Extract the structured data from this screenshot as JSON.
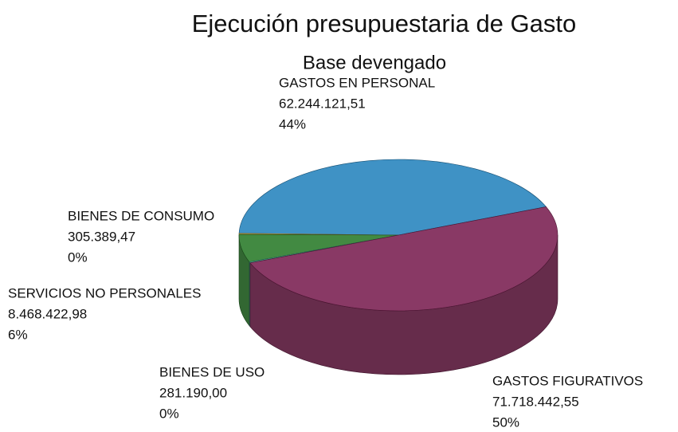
{
  "chart_data": {
    "type": "pie3d",
    "title": "Ejecución presupuestaria de Gasto",
    "subtitle": "Base devengado",
    "categories": [
      "GASTOS EN PERSONAL",
      "BIENES DE CONSUMO",
      "SERVICIOS NO PERSONALES",
      "BIENES DE USO",
      "GASTOS FIGURATIVOS"
    ],
    "values": [
      62244121.51,
      305389.47,
      8468422.98,
      281190.0,
      71718442.55
    ],
    "value_labels": [
      "62.244.121,51",
      "305.389,47",
      "8.468.422,98",
      "281.190,00",
      "71.718.442,55"
    ],
    "percent_labels": [
      "44%",
      "0%",
      "6%",
      "0%",
      "50%"
    ],
    "colors": [
      "#2a86bf",
      "#e0aa2c",
      "#2e7d2e",
      "#3aa58a",
      "#7c2454"
    ]
  }
}
